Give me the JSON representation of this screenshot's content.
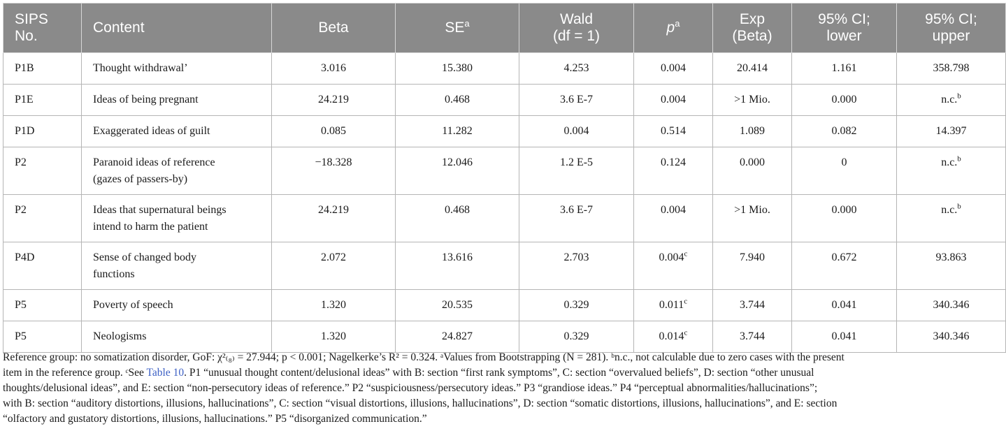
{
  "table": {
    "headers": [
      {
        "line1": "SIPS",
        "line2": "No.",
        "sup": "",
        "align": "left"
      },
      {
        "line1": "Content",
        "line2": "",
        "sup": "",
        "align": "left"
      },
      {
        "line1": "Beta",
        "line2": "",
        "sup": "",
        "align": "ctr"
      },
      {
        "line1": "SE",
        "line2": "",
        "sup": "a",
        "align": "ctr"
      },
      {
        "line1": "Wald",
        "line2": "(df = 1)",
        "sup": "",
        "align": "ctr"
      },
      {
        "line1": "p",
        "line2": "",
        "sup": "a",
        "align": "ctr",
        "italic": true
      },
      {
        "line1": "Exp",
        "line2": "(Beta)",
        "sup": "",
        "align": "ctr"
      },
      {
        "line1": "95% CI;",
        "line2": "lower",
        "sup": "",
        "align": "ctr"
      },
      {
        "line1": "95% CI;",
        "line2": "upper",
        "sup": "",
        "align": "ctr"
      }
    ],
    "rows": [
      {
        "sips": "P1B",
        "content": "Thought withdrawal’",
        "beta": "3.016",
        "se": "15.380",
        "wald": "4.253",
        "p": "0.004",
        "p_sup": "",
        "exp": "20.414",
        "lower": "1.161",
        "upper": "358.798",
        "upper_sup": ""
      },
      {
        "sips": "P1E",
        "content": "Ideas of being pregnant",
        "beta": "24.219",
        "se": "0.468",
        "wald": "3.6 E-7",
        "p": "0.004",
        "p_sup": "",
        "exp": ">1 Mio.",
        "lower": "0.000",
        "upper": "n.c.",
        "upper_sup": "b"
      },
      {
        "sips": "P1D",
        "content": "Exaggerated ideas of guilt",
        "beta": "0.085",
        "se": "11.282",
        "wald": "0.004",
        "p": "0.514",
        "p_sup": "",
        "exp": "1.089",
        "lower": "0.082",
        "upper": "14.397",
        "upper_sup": ""
      },
      {
        "sips": "P2",
        "content": "Paranoid ideas of reference",
        "content2": "(gazes of passers-by)",
        "beta": "−18.328",
        "se": "12.046",
        "wald": "1.2 E-5",
        "p": "0.124",
        "p_sup": "",
        "exp": "0.000",
        "lower": "0",
        "upper": "n.c.",
        "upper_sup": "b"
      },
      {
        "sips": "P2",
        "content": "Ideas that supernatural beings",
        "content2": "intend to harm the patient",
        "beta": "24.219",
        "se": "0.468",
        "wald": "3.6 E-7",
        "p": "0.004",
        "p_sup": "",
        "exp": ">1 Mio.",
        "lower": "0.000",
        "upper": "n.c.",
        "upper_sup": "b"
      },
      {
        "sips": "P4D",
        "content": "Sense of changed body",
        "content2": "functions",
        "beta": "2.072",
        "se": "13.616",
        "wald": "2.703",
        "p": "0.004",
        "p_sup": "c",
        "exp": "7.940",
        "lower": "0.672",
        "upper": "93.863",
        "upper_sup": ""
      },
      {
        "sips": "P5",
        "content": "Poverty of speech",
        "beta": "1.320",
        "se": "20.535",
        "wald": "0.329",
        "p": "0.011",
        "p_sup": "c",
        "exp": "3.744",
        "lower": "0.041",
        "upper": "340.346",
        "upper_sup": ""
      },
      {
        "sips": "P5",
        "content": "Neologisms",
        "beta": "1.320",
        "se": "24.827",
        "wald": "0.329",
        "p": "0.014",
        "p_sup": "c",
        "exp": "3.744",
        "lower": "0.041",
        "upper": "340.346",
        "upper_sup": ""
      }
    ]
  },
  "footnote": {
    "lines": [
      "Reference group: no somatization disorder, GoF: χ²₍₈₎ = 27.944; p < 0.001; Nagelkerke’s R² = 0.324. ᵃValues from Bootstrapping (N = 281). ᵇn.c., not calculable due to zero cases with the present",
      "item in the reference group. ᶜSee Table 10. P1 “unusual thought content/delusional ideas” with B: section “first rank symptoms”, C: section “overvalued beliefs”, D: section “other unusual",
      "thoughts/delusional ideas”, and E: section “non-persecutory ideas of reference.” P2 “suspiciousness/persecutory ideas.” P3 “grandiose ideas.” P4 “perceptual abnormalities/hallucinations”;",
      "with B: section “auditory distortions, illusions, hallucinations”, C: section “visual distortions, illusions, hallucinations”, D: section “somatic distortions, illusions, hallucinations”, and E: section",
      "“olfactory and gustatory distortions, illusions, hallucinations.” P5 “disorganized communication.”"
    ],
    "link_text": "Table 10"
  }
}
